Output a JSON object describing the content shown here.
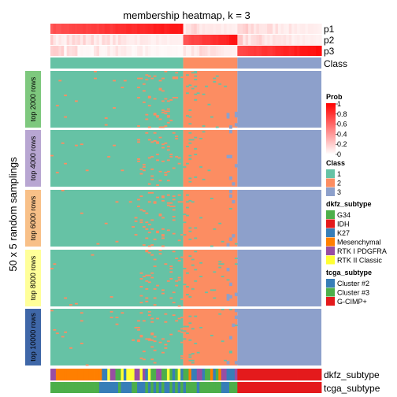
{
  "chart_data": {
    "type": "heatmap",
    "title": "membership heatmap, k = 3",
    "ylabel": "50 x 5 random samplings",
    "n_columns": 100,
    "class_boundaries": [
      49,
      69
    ],
    "prob_rows": {
      "labels": [
        "p1",
        "p2",
        "p3"
      ],
      "mean_values": [
        [
          0.9,
          0.05,
          0.05
        ],
        [
          0.05,
          0.9,
          0.05
        ],
        [
          0.02,
          0.05,
          0.93
        ]
      ]
    },
    "class_row_label": "Class",
    "row_groups": [
      {
        "label": "top 2000 rows",
        "color": "#7ec87e"
      },
      {
        "label": "top 4000 rows",
        "color": "#b8a6d2"
      },
      {
        "label": "top 6000 rows",
        "color": "#f8c088"
      },
      {
        "label": "top 8000 rows",
        "color": "#ffff99"
      },
      {
        "label": "top 10000 rows",
        "color": "#3f67a8"
      }
    ],
    "classes": [
      {
        "name": "1",
        "color": "#66c2a5"
      },
      {
        "name": "2",
        "color": "#fc8d62"
      },
      {
        "name": "3",
        "color": "#8da0cb"
      }
    ],
    "prob_legend": {
      "title": "Prob",
      "ticks": [
        "1",
        "0.8",
        "0.6",
        "0.4",
        "0.2",
        "0"
      ],
      "color_high": "#ff0000",
      "color_low": "#ffffff"
    },
    "class_legend_title": "Class",
    "dkfz": {
      "label": "dkfz_subtype",
      "legend_title": "dkfz_subtype",
      "categories": [
        {
          "name": "G34",
          "color": "#4daf4a"
        },
        {
          "name": "IDH",
          "color": "#e41a1c"
        },
        {
          "name": "K27",
          "color": "#377eb8"
        },
        {
          "name": "Mesenchymal",
          "color": "#ff7f00"
        },
        {
          "name": "RTK I PDGFRA",
          "color": "#984ea3"
        },
        {
          "name": "RTK II Classic",
          "color": "#ffff33"
        }
      ]
    },
    "tcga": {
      "label": "tcga_subtype",
      "legend_title": "tcga_subtype",
      "categories": [
        {
          "name": "Cluster #2",
          "color": "#377eb8"
        },
        {
          "name": "Cluster #3",
          "color": "#4daf4a"
        },
        {
          "name": "G-CIMP+",
          "color": "#e41a1c"
        }
      ]
    }
  }
}
